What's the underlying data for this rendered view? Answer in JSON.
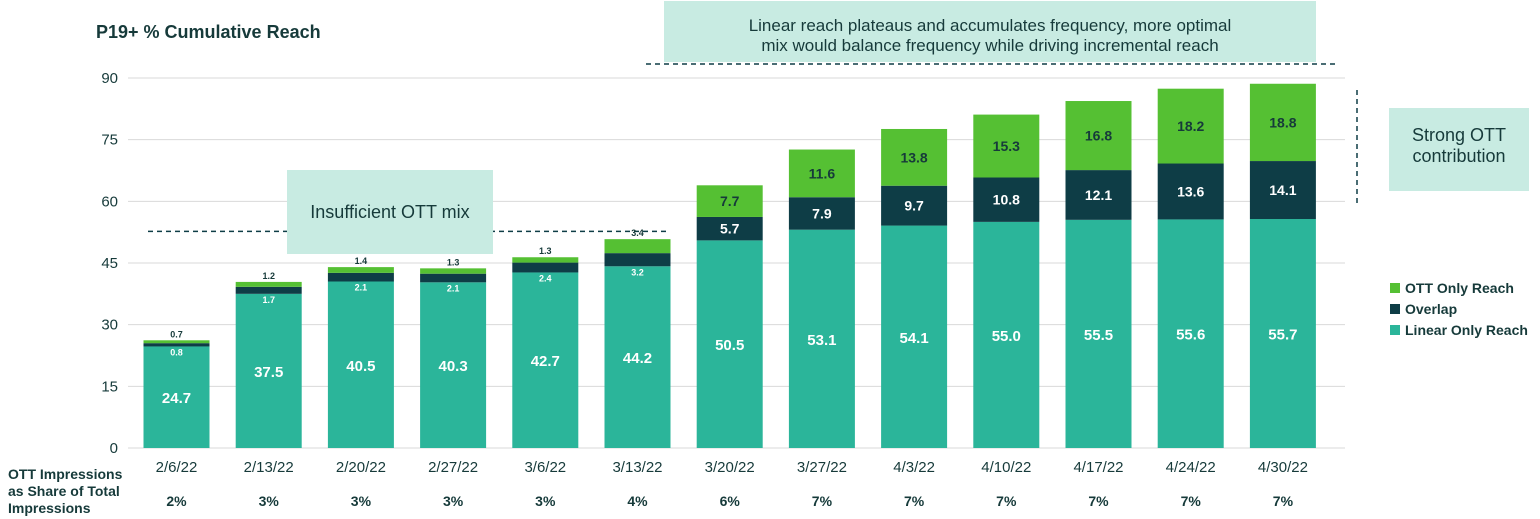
{
  "chart_title": "P19+ % Cumulative Reach",
  "annotations": {
    "linear_line1": "Linear reach plateaus and accumulates frequency, more optimal",
    "linear_line2": "mix would balance frequency while driving incremental reach",
    "insufficient": "Insufficient OTT mix",
    "strong_line1": "Strong OTT",
    "strong_line2": "contribution"
  },
  "share_label": {
    "line1": "OTT Impressions",
    "line2": "as Share of Total",
    "line3": "Impressions"
  },
  "colors": {
    "linear": "#2bb59a",
    "overlap": "#0e3d46",
    "ott": "#55c033",
    "text_dark": "#163a3a",
    "annotation_bg": "#c8ebe2"
  },
  "legend": [
    {
      "label": "OTT Only Reach",
      "color": "#55c033"
    },
    {
      "label": "Overlap",
      "color": "#0e3d46"
    },
    {
      "label": "Linear Only Reach",
      "color": "#2bb59a"
    }
  ],
  "chart_data": {
    "type": "bar",
    "stacked": true,
    "title": "P19+ % Cumulative Reach",
    "ylim": [
      0,
      90
    ],
    "yticks": [
      0,
      15,
      30,
      45,
      60,
      75,
      90
    ],
    "grid": true,
    "legend_position": "right",
    "categories": [
      "2/6/22",
      "2/13/22",
      "2/20/22",
      "2/27/22",
      "3/6/22",
      "3/13/22",
      "3/20/22",
      "3/27/22",
      "4/3/22",
      "4/10/22",
      "4/17/22",
      "4/24/22",
      "4/30/22"
    ],
    "series": [
      {
        "name": "Linear Only Reach",
        "values": [
          24.7,
          37.5,
          40.5,
          40.3,
          42.7,
          44.2,
          50.5,
          53.1,
          54.1,
          55.0,
          55.5,
          55.6,
          55.7
        ]
      },
      {
        "name": "Overlap",
        "values": [
          0.8,
          1.7,
          2.1,
          2.1,
          2.4,
          3.2,
          5.7,
          7.9,
          9.7,
          10.8,
          12.1,
          13.6,
          14.1
        ]
      },
      {
        "name": "OTT Only Reach",
        "values": [
          0.7,
          1.2,
          1.4,
          1.3,
          1.3,
          3.4,
          7.7,
          11.6,
          13.8,
          15.3,
          16.8,
          18.2,
          18.8
        ]
      }
    ],
    "ott_share_labels": [
      "2%",
      "3%",
      "3%",
      "3%",
      "3%",
      "4%",
      "6%",
      "7%",
      "7%",
      "7%",
      "7%",
      "7%",
      "7%"
    ]
  }
}
